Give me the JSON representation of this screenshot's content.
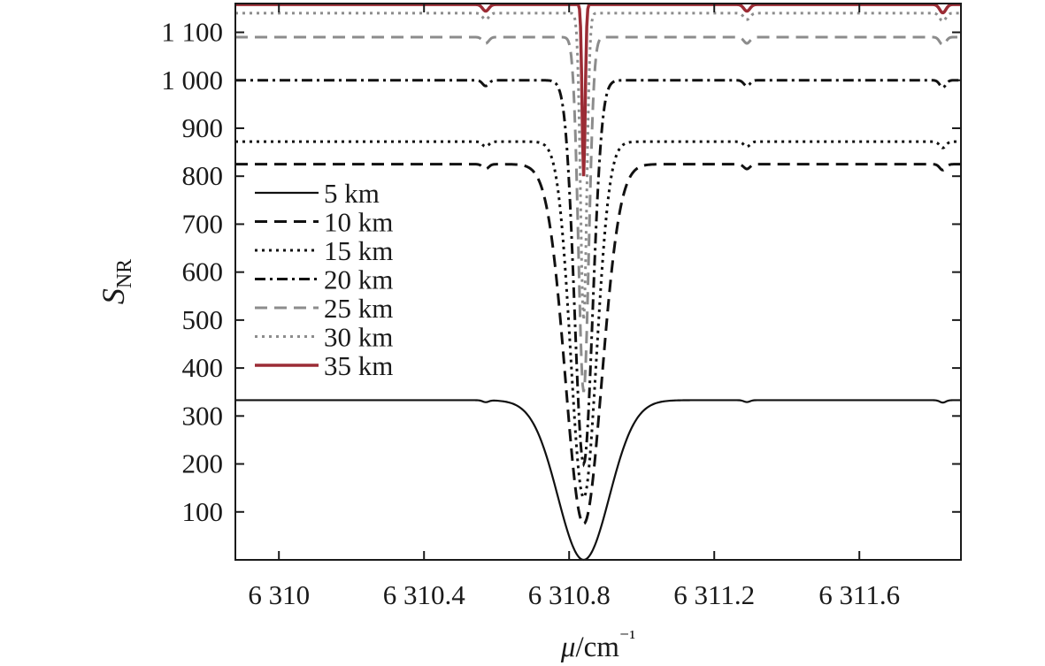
{
  "chart_data": {
    "type": "line",
    "xlabel": "μ/cm⁻¹",
    "ylabel": "SNR",
    "xlim": [
      6309.88,
      6311.88
    ],
    "ylim": [
      0,
      1160
    ],
    "xticks": [
      6310,
      6310.4,
      6310.8,
      6311.2,
      6311.6
    ],
    "xtick_labels": [
      "6 310",
      "6 310.4",
      "6 310.8",
      "6 311.2",
      "6 311.6"
    ],
    "yticks": [
      100,
      200,
      300,
      400,
      500,
      600,
      700,
      800,
      900,
      1000,
      1100
    ],
    "ytick_labels": [
      "100",
      "200",
      "300",
      "400",
      "500",
      "600",
      "700",
      "800",
      "900",
      "1 000",
      "1 100"
    ],
    "grid": false,
    "legend_position": "left-middle",
    "absorption_center": 6310.84,
    "series": [
      {
        "name": "5 km",
        "baseline": 333,
        "min": 0,
        "dip_width": 0.1,
        "style": "solid",
        "color": "#111111"
      },
      {
        "name": "10 km",
        "baseline": 825,
        "min": 75,
        "dip_width": 0.07,
        "style": "dashed",
        "color": "#111111"
      },
      {
        "name": "15 km",
        "baseline": 872,
        "min": 130,
        "dip_width": 0.05,
        "style": "dotted",
        "color": "#111111"
      },
      {
        "name": "20 km",
        "baseline": 1000,
        "min": 200,
        "dip_width": 0.035,
        "style": "dashdot",
        "color": "#111111"
      },
      {
        "name": "25 km",
        "baseline": 1090,
        "min": 350,
        "dip_width": 0.02,
        "style": "dashed",
        "color": "#8c8c8c"
      },
      {
        "name": "30 km",
        "baseline": 1140,
        "min": 500,
        "dip_width": 0.012,
        "style": "dotted",
        "color": "#8c8c8c"
      },
      {
        "name": "35 km",
        "baseline": 1158,
        "min": 800,
        "dip_width": 0.006,
        "style": "solid",
        "color": "#9b2c35"
      }
    ]
  }
}
